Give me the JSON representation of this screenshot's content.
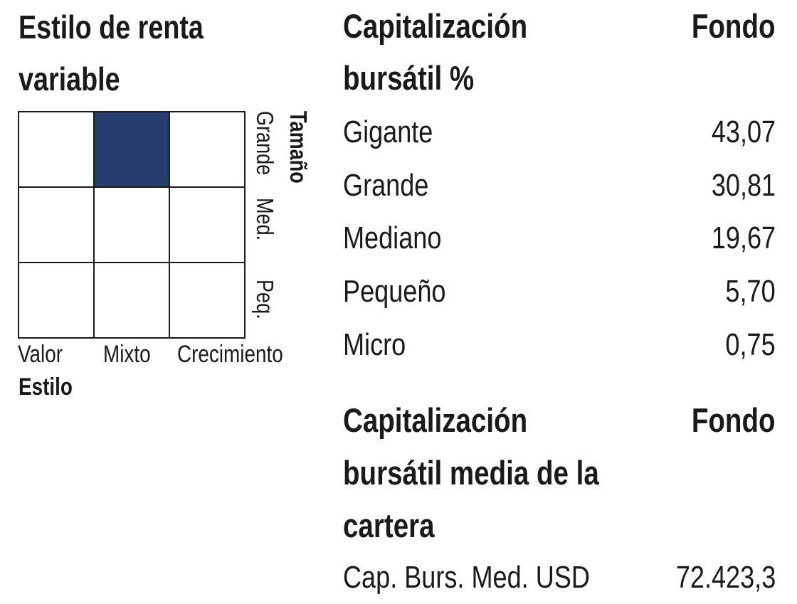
{
  "style_box": {
    "title_line1": "Estilo de renta",
    "title_line2": "variable",
    "size_axis_title": "Tamaño",
    "size_labels": [
      "Grande",
      "Med.",
      "Peq."
    ],
    "style_labels": [
      "Valor",
      "Mixto",
      "Crecimiento"
    ],
    "style_axis_title": "Estilo",
    "selected": {
      "row": 0,
      "col": 1
    },
    "fill_color": "#263d6e"
  },
  "market_cap": {
    "heading_line1": "Capitalización",
    "heading_line2": "bursátil %",
    "fund_header": "Fondo",
    "rows": [
      {
        "label": "Gigante",
        "value": "43,07"
      },
      {
        "label": "Grande",
        "value": "30,81"
      },
      {
        "label": "Mediano",
        "value": "19,67"
      },
      {
        "label": "Pequeño",
        "value": "5,70"
      },
      {
        "label": "Micro",
        "value": "0,75"
      }
    ]
  },
  "avg_market_cap": {
    "heading_line1": "Capitalización",
    "heading_line2": "bursátil media de la",
    "heading_line3": "cartera",
    "fund_header": "Fondo",
    "row_label": "Cap. Burs. Med. USD",
    "row_value": "72.423,3"
  }
}
